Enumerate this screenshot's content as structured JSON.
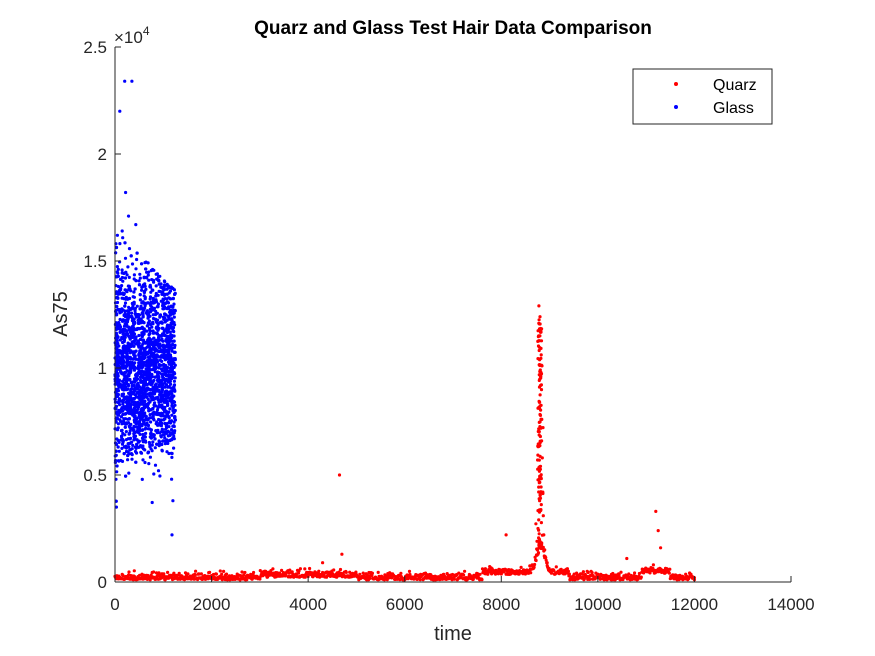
{
  "chart_data": {
    "type": "scatter",
    "title": "Quarz and Glass Test Hair Data Comparison",
    "xlabel": "time",
    "ylabel": "As75",
    "xlim": [
      0,
      14000
    ],
    "ylim": [
      0,
      25000
    ],
    "x_ticks": [
      0,
      2000,
      4000,
      6000,
      8000,
      10000,
      12000,
      14000
    ],
    "x_tick_labels": [
      "0",
      "2000",
      "4000",
      "6000",
      "8000",
      "10000",
      "12000",
      "14000"
    ],
    "y_ticks": [
      0,
      5000,
      10000,
      15000,
      20000,
      25000
    ],
    "y_tick_labels": [
      "0",
      "0.5",
      "1",
      "1.5",
      "2",
      "2.5"
    ],
    "y_exponent": {
      "base": "×10",
      "power": "4"
    },
    "grid": false,
    "legend_position": "top-right",
    "series": [
      {
        "name": "Quarz",
        "color": "#ff0000",
        "points": [
          [
            4650,
            5000
          ],
          [
            8780,
            12900
          ],
          [
            8800,
            11500
          ],
          [
            8820,
            9800
          ],
          [
            8840,
            7600
          ],
          [
            8850,
            5800
          ],
          [
            8860,
            4200
          ],
          [
            8870,
            3100
          ],
          [
            8760,
            2500
          ],
          [
            8740,
            1900
          ],
          [
            8880,
            2200
          ],
          [
            8900,
            1500
          ],
          [
            8100,
            2200
          ],
          [
            11200,
            3300
          ],
          [
            11250,
            2400
          ],
          [
            11300,
            1600
          ],
          [
            10600,
            1100
          ],
          [
            4700,
            1300
          ],
          [
            4300,
            900
          ],
          [
            8950,
            900
          ],
          [
            11150,
            800
          ],
          [
            12000,
            200
          ]
        ],
        "baseline": {
          "x_range": [
            0,
            12000
          ],
          "y_typical": [
            0,
            600
          ]
        }
      },
      {
        "name": "Glass",
        "color": "#0000ff",
        "points": [
          [
            200,
            23400
          ],
          [
            350,
            23400
          ],
          [
            100,
            22000
          ],
          [
            220,
            18200
          ],
          [
            280,
            17100
          ],
          [
            430,
            16700
          ],
          [
            150,
            16400
          ],
          [
            50,
            16200
          ],
          [
            1000,
            13700
          ],
          [
            1150,
            13600
          ],
          [
            900,
            5200
          ],
          [
            1200,
            3800
          ],
          [
            1180,
            2200
          ],
          [
            30,
            3500
          ],
          [
            20,
            4800
          ]
        ],
        "cluster": {
          "x_range": [
            0,
            1250
          ],
          "y_range": [
            3500,
            16500
          ],
          "center": 10000
        }
      }
    ]
  }
}
